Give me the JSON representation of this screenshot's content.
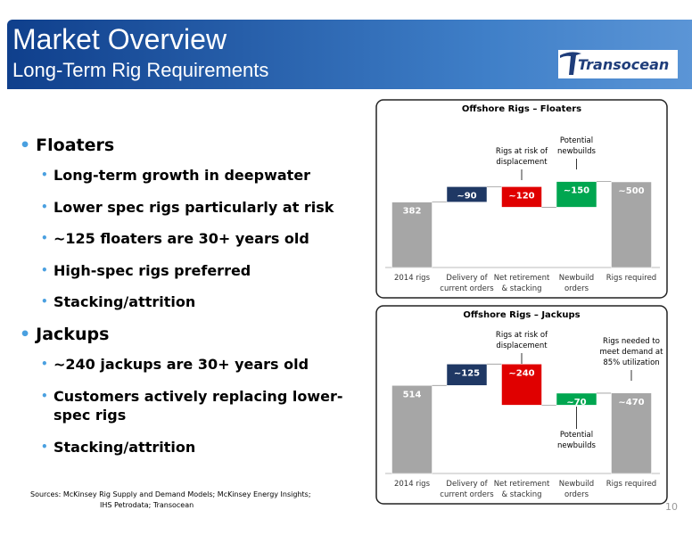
{
  "header": {
    "title": "Market Overview",
    "subtitle": "Long-Term Rig Requirements",
    "logo": "Transocean"
  },
  "bullets": [
    {
      "text": "Floaters",
      "items": [
        "Long-term growth in deepwater",
        "Lower spec rigs particularly at risk",
        "~125 floaters are 30+ years old",
        "High-spec rigs preferred",
        "Stacking/attrition"
      ]
    },
    {
      "text": "Jackups",
      "items": [
        "~240 jackups are 30+ years old",
        "Customers actively replacing lower-spec rigs",
        "Stacking/attrition"
      ]
    }
  ],
  "sources": [
    "Sources: McKinsey Rig Supply and Demand Models;  McKinsey Energy Insights;",
    "IHS Petrodata; Transocean"
  ],
  "page_number": 10,
  "chart_data": [
    {
      "type": "waterfall",
      "title": "Offshore Rigs – Floaters",
      "categories": [
        [
          "2014 rigs"
        ],
        [
          "Delivery of",
          "current orders"
        ],
        [
          "Net retirement",
          "& stacking"
        ],
        [
          "Newbuild",
          "orders"
        ],
        [
          "Rigs required"
        ]
      ],
      "measures": [
        "absolute",
        "relative",
        "relative",
        "relative",
        "total"
      ],
      "values": [
        382,
        90,
        -120,
        150,
        500
      ],
      "value_labels": [
        "382",
        "~90",
        "~120",
        "~150",
        "~500"
      ],
      "colors": [
        "#a6a6a6",
        "#1f3864",
        "#e00000",
        "#00a650",
        "#a6a6a6"
      ],
      "annotations": [
        [
          "Rigs at risk of",
          "displacement"
        ],
        [
          "Potential",
          "newbuilds"
        ]
      ]
    },
    {
      "type": "waterfall",
      "title": "Offshore Rigs – Jackups",
      "categories": [
        [
          "2014 rigs"
        ],
        [
          "Delivery of",
          "current orders"
        ],
        [
          "Net retirement",
          "& stacking"
        ],
        [
          "Newbuild",
          "orders"
        ],
        [
          "Rigs required"
        ]
      ],
      "measures": [
        "absolute",
        "relative",
        "relative",
        "relative",
        "total"
      ],
      "values": [
        514,
        125,
        -240,
        70,
        470
      ],
      "value_labels": [
        "514",
        "~125",
        "~240",
        "~70",
        "~470"
      ],
      "colors": [
        "#a6a6a6",
        "#1f3864",
        "#e00000",
        "#00a650",
        "#a6a6a6"
      ],
      "annotations": [
        [
          "Rigs at risk of",
          "displacement"
        ],
        [
          "Potential",
          "newbuilds"
        ],
        [
          "Rigs needed to",
          "meet demand at",
          "85% utilization"
        ]
      ]
    }
  ]
}
